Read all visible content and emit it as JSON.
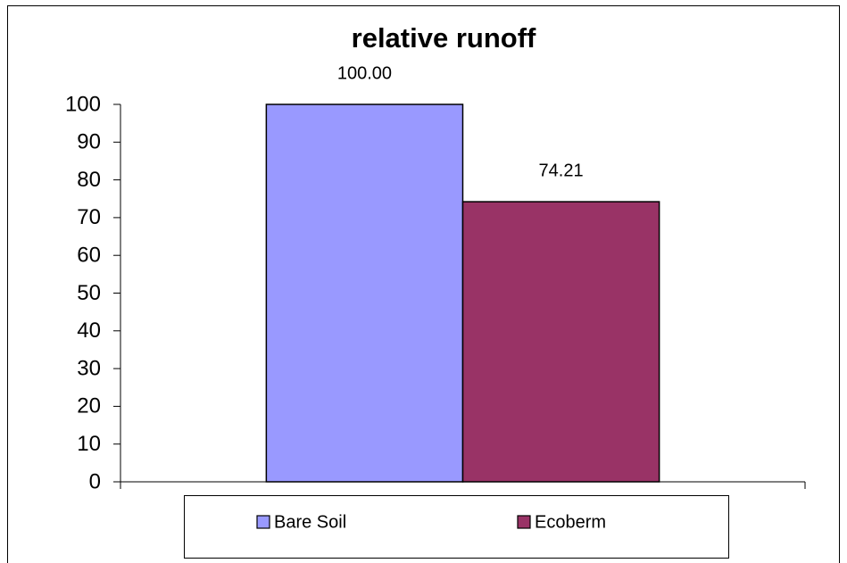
{
  "chart_data": {
    "type": "bar",
    "title": "relative runoff",
    "categories": [
      null
    ],
    "series": [
      {
        "name": "Bare Soil",
        "color": "#9999ff",
        "values": [
          100
        ],
        "value_labels": [
          "100.00"
        ]
      },
      {
        "name": "Ecoberm",
        "color": "#993366",
        "values": [
          74.21
        ],
        "value_labels": [
          "74.21"
        ]
      }
    ],
    "ylim": [
      0,
      100
    ],
    "yticks": [
      0,
      10,
      20,
      30,
      40,
      50,
      60,
      70,
      80,
      90,
      100
    ],
    "grid": false,
    "legend": "bottom"
  }
}
